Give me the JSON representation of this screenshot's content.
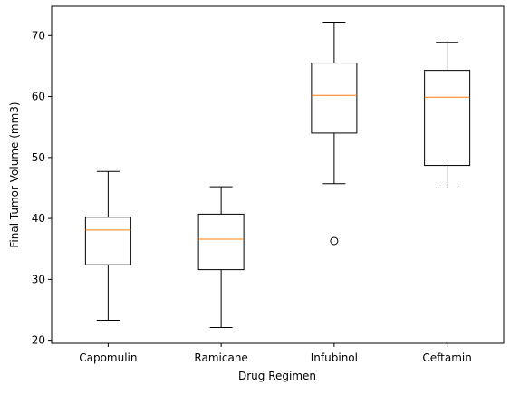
{
  "chart_data": {
    "type": "box",
    "title": "",
    "xlabel": "Drug Regimen",
    "ylabel": "Final Tumor Volume (mm3)",
    "ylim": [
      19.5,
      74.8
    ],
    "yticks": [
      20,
      30,
      40,
      50,
      60,
      70
    ],
    "categories": [
      "Capomulin",
      "Ramicane",
      "Infubinol",
      "Ceftamin"
    ],
    "boxes": [
      {
        "name": "Capomulin",
        "whisker_low": 23.3,
        "q1": 32.4,
        "median": 38.1,
        "q3": 40.2,
        "whisker_high": 47.7,
        "outliers": []
      },
      {
        "name": "Ramicane",
        "whisker_low": 22.1,
        "q1": 31.6,
        "median": 36.6,
        "q3": 40.7,
        "whisker_high": 45.2,
        "outliers": []
      },
      {
        "name": "Infubinol",
        "whisker_low": 45.7,
        "q1": 54.0,
        "median": 60.2,
        "q3": 65.5,
        "whisker_high": 72.2,
        "outliers": [
          36.3
        ]
      },
      {
        "name": "Ceftamin",
        "whisker_low": 45.0,
        "q1": 48.7,
        "median": 59.9,
        "q3": 64.3,
        "whisker_high": 68.9,
        "outliers": []
      }
    ],
    "grid": false,
    "colors": {
      "box": "#000000",
      "median": "#ff7f0e",
      "outlier": "#000000"
    }
  }
}
